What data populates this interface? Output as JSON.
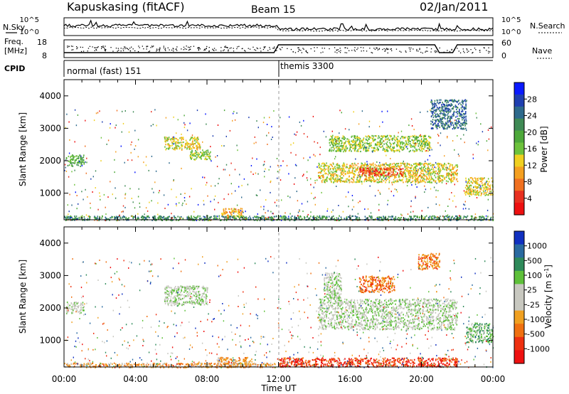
{
  "header": {
    "station": "Kapuskasing (fitACF)",
    "beam": "Beam 15",
    "date": "02/Jan/2011"
  },
  "params": {
    "left_top": "N.Sky",
    "left_mid_1": "Freq.",
    "left_mid_2": "[MHz]",
    "left_bottom": "CPID",
    "right_top": "N.Search",
    "right_mid": "Nave",
    "noise_ticks": [
      "10^5",
      "10^0"
    ],
    "freq_ticks": [
      "18",
      "8"
    ],
    "nave_ticks": [
      "60",
      "0"
    ],
    "cpid_segments": [
      {
        "label": "normal (fast) 151",
        "start_h": 0
      },
      {
        "label": "themis 3300",
        "start_h": 12
      }
    ]
  },
  "chart_data": [
    {
      "type": "heatmap",
      "name": "power-panel",
      "ylabel": "Slant Range [km]",
      "xlabel": "Time UT",
      "xlim_hours": [
        0,
        24
      ],
      "x_ticks": [
        "00:00",
        "04:00",
        "08:00",
        "12:00",
        "16:00",
        "20:00",
        "00:00"
      ],
      "ylim_km": [
        180,
        4500
      ],
      "y_ticks": [
        1000,
        2000,
        3000,
        4000
      ],
      "colorbar": {
        "label": "Power [dB]",
        "ticks": [
          "28",
          "24",
          "20",
          "16",
          "12",
          "8",
          "4"
        ],
        "colors": [
          "#0a1aff",
          "#1f3fb0",
          "#2e6a8c",
          "#3f8a55",
          "#4da83a",
          "#6dc23c",
          "#f0d020",
          "#f5a020",
          "#f07020",
          "#e83020",
          "#ee1010"
        ]
      },
      "regions": [
        {
          "t0": 0.1,
          "t1": 1.1,
          "r0": 1850,
          "r1": 2200,
          "level": 4
        },
        {
          "t0": 5.6,
          "t1": 7.6,
          "r0": 2350,
          "r1": 2750,
          "level": 6
        },
        {
          "t0": 7.0,
          "t1": 8.2,
          "r0": 2050,
          "r1": 2350,
          "level": 5
        },
        {
          "t0": 8.8,
          "t1": 10.0,
          "r0": 250,
          "r1": 550,
          "level": 7
        },
        {
          "t0": 14.2,
          "t1": 22.0,
          "r0": 1350,
          "r1": 1950,
          "level": 6
        },
        {
          "t0": 14.8,
          "t1": 20.5,
          "r0": 2300,
          "r1": 2800,
          "level": 5
        },
        {
          "t0": 16.5,
          "t1": 19.0,
          "r0": 1550,
          "r1": 1800,
          "level": 9
        },
        {
          "t0": 22.4,
          "t1": 24.0,
          "r0": 950,
          "r1": 1500,
          "level": 6
        },
        {
          "t0": 20.5,
          "t1": 22.5,
          "r0": 3000,
          "r1": 3900,
          "level": 2
        },
        {
          "t0": 0.0,
          "t1": 24.0,
          "r0": 180,
          "r1": 320,
          "level": 3
        }
      ]
    },
    {
      "type": "heatmap",
      "name": "velocity-panel",
      "ylabel": "Slant Range [km]",
      "xlabel": "Time UT",
      "xlim_hours": [
        0,
        24
      ],
      "x_ticks": [
        "00:00",
        "04:00",
        "08:00",
        "12:00",
        "16:00",
        "20:00",
        "00:00"
      ],
      "ylim_km": [
        180,
        4500
      ],
      "y_ticks": [
        1000,
        2000,
        3000,
        4000
      ],
      "colorbar": {
        "label": "Velocity [m s^-1]",
        "ticks": [
          "1000",
          "500",
          "100",
          "25",
          "-25",
          "-100",
          "-500",
          "-1000"
        ],
        "colors": [
          "#1030c0",
          "#2a6aa0",
          "#2e8a5a",
          "#5ec03a",
          "#c8c8c0",
          "#c8c8c0",
          "#f0a020",
          "#f07010",
          "#ee3010",
          "#ee1010"
        ]
      },
      "regions": [
        {
          "t0": 0.1,
          "t1": 1.1,
          "r0": 1850,
          "r1": 2200,
          "level": 4
        },
        {
          "t0": 5.6,
          "t1": 8.0,
          "r0": 2100,
          "r1": 2700,
          "level": 4
        },
        {
          "t0": 8.5,
          "t1": 10.5,
          "r0": 180,
          "r1": 500,
          "level": 6
        },
        {
          "t0": 14.2,
          "t1": 22.0,
          "r0": 1350,
          "r1": 2300,
          "level": 4
        },
        {
          "t0": 14.5,
          "t1": 15.5,
          "r0": 2300,
          "r1": 3100,
          "level": 4
        },
        {
          "t0": 16.5,
          "t1": 18.5,
          "r0": 2500,
          "r1": 3000,
          "level": 7
        },
        {
          "t0": 22.5,
          "t1": 24.0,
          "r0": 950,
          "r1": 1550,
          "level": 3
        },
        {
          "t0": 19.8,
          "t1": 21.0,
          "r0": 3200,
          "r1": 3700,
          "level": 7
        },
        {
          "t0": 0.0,
          "t1": 11.8,
          "r0": 180,
          "r1": 320,
          "level": 6
        },
        {
          "t0": 12.0,
          "t1": 22.0,
          "r0": 200,
          "r1": 480,
          "level": 8
        }
      ]
    }
  ]
}
